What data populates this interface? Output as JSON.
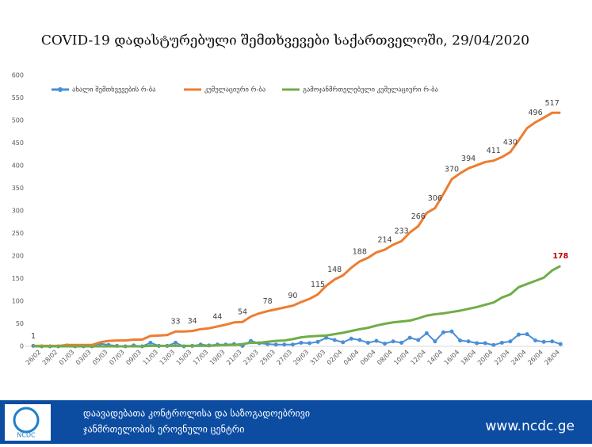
{
  "chart_data": {
    "type": "line",
    "title": "COVID-19 დადასტურებული შემთხვევები საქართველოში, 29/04/2020",
    "categories": [
      "26/02",
      null,
      "28/02",
      null,
      "01/03",
      null,
      "03/03",
      null,
      "05/03",
      null,
      "07/03",
      null,
      "09/03",
      null,
      "11/03",
      null,
      "13/03",
      null,
      "15/03",
      null,
      "17/03",
      null,
      "19/03",
      null,
      "21/03",
      null,
      "23/03",
      null,
      "25/03",
      null,
      "27/03",
      null,
      "29/03",
      null,
      "31/03",
      null,
      "02/04",
      null,
      "04/04",
      null,
      "06/04",
      null,
      "08/04",
      null,
      "10/04",
      null,
      "12/04",
      null,
      "14/04",
      null,
      "16/04",
      null,
      "18/04",
      null,
      "20/04",
      null,
      "22/04",
      null,
      "24/04",
      null,
      "26/04",
      null,
      "28/04",
      null
    ],
    "series": [
      {
        "name": "ახალი შემთხვევების რ-ბა",
        "color": "#4a8fd6",
        "values": [
          1,
          0,
          0,
          0,
          2,
          0,
          0,
          0,
          6,
          3,
          1,
          0,
          2,
          0,
          8,
          1,
          1,
          8,
          0,
          1,
          4,
          2,
          4,
          4,
          5,
          1,
          12,
          7,
          5,
          4,
          4,
          4,
          8,
          7,
          10,
          19,
          14,
          9,
          17,
          14,
          8,
          12,
          6,
          11,
          8,
          19,
          14,
          29,
          11,
          31,
          33,
          13,
          11,
          7,
          7,
          3,
          8,
          11,
          26,
          27,
          13,
          10,
          11,
          5
        ]
      },
      {
        "name": "კუმულაციური რ-ბა",
        "color": "#ed7d31",
        "values": [
          1,
          1,
          1,
          1,
          3,
          3,
          3,
          3,
          9,
          12,
          13,
          13,
          15,
          15,
          23,
          24,
          25,
          33,
          33,
          34,
          38,
          40,
          44,
          48,
          53,
          54,
          66,
          73,
          78,
          82,
          86,
          90,
          98,
          105,
          115,
          134,
          148,
          157,
          174,
          188,
          196,
          208,
          214,
          225,
          233,
          252,
          266,
          295,
          306,
          337,
          370,
          383,
          394,
          401,
          408,
          411,
          419,
          430,
          456,
          483,
          496,
          506,
          517,
          517
        ]
      },
      {
        "name": "გამოჯანმრთელებული კუმულაციური რ-ბა",
        "color": "#70ad47",
        "values": [
          0,
          0,
          0,
          0,
          0,
          0,
          0,
          0,
          0,
          0,
          0,
          0,
          0,
          0,
          1,
          1,
          1,
          1,
          1,
          1,
          1,
          1,
          2,
          3,
          3,
          5,
          8,
          8,
          10,
          12,
          13,
          16,
          20,
          22,
          23,
          24,
          27,
          30,
          34,
          38,
          41,
          46,
          50,
          53,
          55,
          57,
          62,
          68,
          71,
          73,
          76,
          79,
          83,
          87,
          92,
          97,
          108,
          115,
          131,
          138,
          145,
          152,
          168,
          178
        ]
      }
    ],
    "ylim": [
      0,
      600
    ],
    "yticks": [
      0,
      50,
      100,
      150,
      200,
      250,
      300,
      350,
      400,
      450,
      500,
      550,
      600
    ],
    "grid": false
  },
  "footer": {
    "org_line1": "დაავადებათა კონტროლისა და საზოგადოებრივი",
    "org_line2": "ჯანმრთელობის ეროვნული ცენტრი",
    "url": "www.ncdc.ge",
    "logo": "NCDC"
  }
}
